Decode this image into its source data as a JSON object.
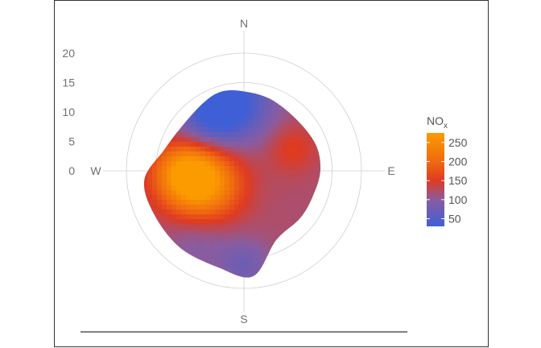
{
  "chart_data": {
    "type": "heatmap",
    "subtype": "polar-plot",
    "title": "",
    "radial_axis": {
      "ticks": [
        0,
        5,
        10,
        15,
        20
      ],
      "tick_labels": [
        "0",
        "5",
        "10",
        "15",
        "20"
      ],
      "range": [
        0,
        25
      ]
    },
    "compass": {
      "north": "N",
      "east": "E",
      "south": "S",
      "west": "W"
    },
    "legend": {
      "title_main": "NO",
      "title_sub": "x",
      "placement": "right",
      "range": [
        30,
        275
      ],
      "ticks": [
        50,
        100,
        150,
        200,
        250
      ],
      "tick_labels": [
        "50",
        "100",
        "150",
        "200",
        "250"
      ],
      "color_stops": [
        {
          "value": 30,
          "color": "#3f5fd6"
        },
        {
          "value": 100,
          "color": "#8a5c9f"
        },
        {
          "value": 150,
          "color": "#de3a22"
        },
        {
          "value": 200,
          "color": "#f06a10"
        },
        {
          "value": 275,
          "color": "#fb9b00"
        }
      ]
    },
    "field": {
      "background_level": 120,
      "hotspots": [
        {
          "angle": 255,
          "speed": 7.5,
          "value": 165,
          "spread": 4.5
        },
        {
          "angle": 270,
          "speed": 10.5,
          "value": 80,
          "spread": 3.5
        },
        {
          "angle": 350,
          "speed": 12,
          "value": -95,
          "spread": 5
        },
        {
          "angle": 320,
          "speed": 10,
          "value": -55,
          "spread": 4
        },
        {
          "angle": 180,
          "speed": 16,
          "value": -45,
          "spread": 3
        },
        {
          "angle": 65,
          "speed": 9,
          "value": 35,
          "spread": 3
        },
        {
          "angle": 215,
          "speed": 14,
          "value": -30,
          "spread": 4
        }
      ],
      "boundary": [
        {
          "angle": 0,
          "speed": 13.5
        },
        {
          "angle": 20,
          "speed": 13
        },
        {
          "angle": 45,
          "speed": 12.5
        },
        {
          "angle": 70,
          "speed": 13
        },
        {
          "angle": 90,
          "speed": 13
        },
        {
          "angle": 110,
          "speed": 12.5
        },
        {
          "angle": 130,
          "speed": 12.5
        },
        {
          "angle": 155,
          "speed": 13
        },
        {
          "angle": 175,
          "speed": 18
        },
        {
          "angle": 195,
          "speed": 17
        },
        {
          "angle": 220,
          "speed": 17
        },
        {
          "angle": 245,
          "speed": 17
        },
        {
          "angle": 265,
          "speed": 17
        },
        {
          "angle": 285,
          "speed": 14
        },
        {
          "angle": 305,
          "speed": 13
        },
        {
          "angle": 330,
          "speed": 13.5
        },
        {
          "angle": 345,
          "speed": 14
        }
      ]
    }
  }
}
